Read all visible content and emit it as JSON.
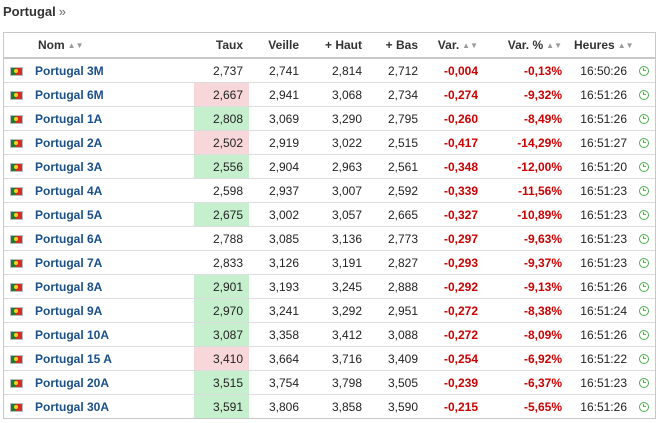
{
  "page": {
    "title": "Portugal",
    "breadcrumb_sep": "»"
  },
  "table": {
    "headers": {
      "nom": "Nom",
      "taux": "Taux",
      "veille": "Veille",
      "haut": "+ Haut",
      "bas": "+ Bas",
      "var": "Var.",
      "var_pct": "Var. %",
      "heures": "Heures"
    },
    "rows": [
      {
        "name": "Portugal 3M",
        "taux": "2,737",
        "veille": "2,741",
        "haut": "2,814",
        "bas": "2,712",
        "var": "-0,004",
        "var_pct": "-0,13%",
        "heures": "16:50:26",
        "highlight": ""
      },
      {
        "name": "Portugal 6M",
        "taux": "2,667",
        "veille": "2,941",
        "haut": "3,068",
        "bas": "2,734",
        "var": "-0,274",
        "var_pct": "-9,32%",
        "heures": "16:51:26",
        "highlight": "down"
      },
      {
        "name": "Portugal 1A",
        "taux": "2,808",
        "veille": "3,069",
        "haut": "3,290",
        "bas": "2,795",
        "var": "-0,260",
        "var_pct": "-8,49%",
        "heures": "16:51:26",
        "highlight": "up"
      },
      {
        "name": "Portugal 2A",
        "taux": "2,502",
        "veille": "2,919",
        "haut": "3,022",
        "bas": "2,515",
        "var": "-0,417",
        "var_pct": "-14,29%",
        "heures": "16:51:27",
        "highlight": "down"
      },
      {
        "name": "Portugal 3A",
        "taux": "2,556",
        "veille": "2,904",
        "haut": "2,963",
        "bas": "2,561",
        "var": "-0,348",
        "var_pct": "-12,00%",
        "heures": "16:51:20",
        "highlight": "up"
      },
      {
        "name": "Portugal 4A",
        "taux": "2,598",
        "veille": "2,937",
        "haut": "3,007",
        "bas": "2,592",
        "var": "-0,339",
        "var_pct": "-11,56%",
        "heures": "16:51:23",
        "highlight": ""
      },
      {
        "name": "Portugal 5A",
        "taux": "2,675",
        "veille": "3,002",
        "haut": "3,057",
        "bas": "2,665",
        "var": "-0,327",
        "var_pct": "-10,89%",
        "heures": "16:51:23",
        "highlight": "up"
      },
      {
        "name": "Portugal 6A",
        "taux": "2,788",
        "veille": "3,085",
        "haut": "3,136",
        "bas": "2,773",
        "var": "-0,297",
        "var_pct": "-9,63%",
        "heures": "16:51:23",
        "highlight": ""
      },
      {
        "name": "Portugal 7A",
        "taux": "2,833",
        "veille": "3,126",
        "haut": "3,191",
        "bas": "2,827",
        "var": "-0,293",
        "var_pct": "-9,37%",
        "heures": "16:51:23",
        "highlight": ""
      },
      {
        "name": "Portugal 8A",
        "taux": "2,901",
        "veille": "3,193",
        "haut": "3,245",
        "bas": "2,888",
        "var": "-0,292",
        "var_pct": "-9,13%",
        "heures": "16:51:26",
        "highlight": "up"
      },
      {
        "name": "Portugal 9A",
        "taux": "2,970",
        "veille": "3,241",
        "haut": "3,292",
        "bas": "2,951",
        "var": "-0,272",
        "var_pct": "-8,38%",
        "heures": "16:51:24",
        "highlight": "up"
      },
      {
        "name": "Portugal 10A",
        "taux": "3,087",
        "veille": "3,358",
        "haut": "3,412",
        "bas": "3,088",
        "var": "-0,272",
        "var_pct": "-8,09%",
        "heures": "16:51:26",
        "highlight": "up"
      },
      {
        "name": "Portugal 15 A",
        "taux": "3,410",
        "veille": "3,664",
        "haut": "3,716",
        "bas": "3,409",
        "var": "-0,254",
        "var_pct": "-6,92%",
        "heures": "16:51:22",
        "highlight": "down"
      },
      {
        "name": "Portugal 20A",
        "taux": "3,515",
        "veille": "3,754",
        "haut": "3,798",
        "bas": "3,505",
        "var": "-0,239",
        "var_pct": "-6,37%",
        "heures": "16:51:23",
        "highlight": "up"
      },
      {
        "name": "Portugal 30A",
        "taux": "3,591",
        "veille": "3,806",
        "haut": "3,858",
        "bas": "3,590",
        "var": "-0,215",
        "var_pct": "-5,65%",
        "heures": "16:51:26",
        "highlight": "up"
      }
    ]
  },
  "icons": {
    "flag": "portugal-flag-icon",
    "clock": "clock-icon",
    "sort": "sort-icon"
  },
  "colors": {
    "name": "#1a4f8a",
    "negative": "#cc0000",
    "up_bg": "#c6efce",
    "down_bg": "#f8d7da",
    "clock": "#4caf50"
  }
}
